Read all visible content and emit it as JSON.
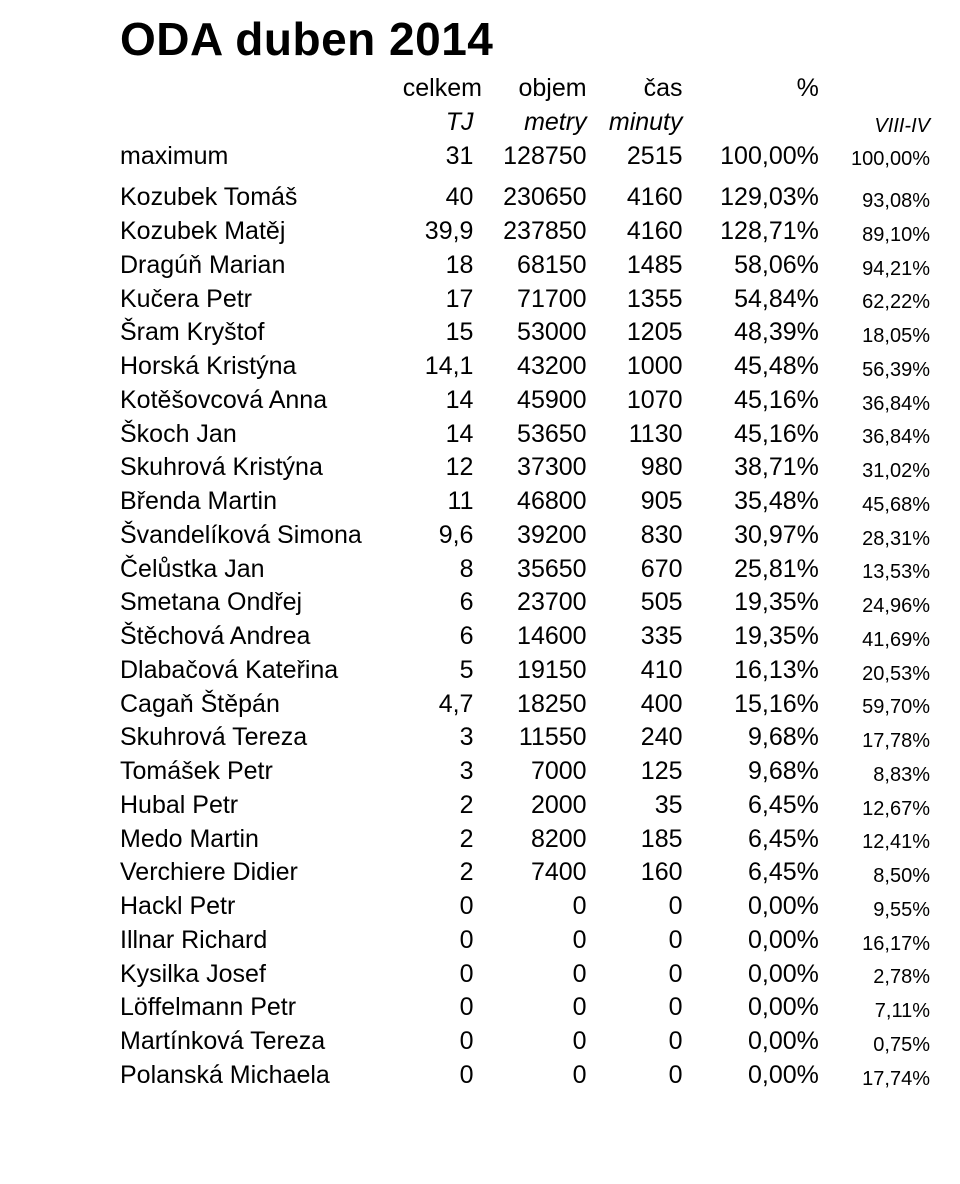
{
  "title": "ODA duben 2014",
  "header1": {
    "celkem": "celkem",
    "objem": "objem",
    "cas": "čas",
    "pct": "%"
  },
  "header2": {
    "tj": "TJ",
    "metry": "metry",
    "minuty": "minuty",
    "viii": "VIII-IV"
  },
  "maximum": {
    "label": "maximum",
    "tj": "31",
    "metry": "128750",
    "minuty": "2515",
    "pct": "100,00%",
    "viii": "100,00%"
  },
  "rows": [
    {
      "name": "Kozubek Tomáš",
      "tj": "40",
      "metry": "230650",
      "minuty": "4160",
      "pct": "129,03%",
      "viii": "93,08%"
    },
    {
      "name": "Kozubek Matěj",
      "tj": "39,9",
      "metry": "237850",
      "minuty": "4160",
      "pct": "128,71%",
      "viii": "89,10%"
    },
    {
      "name": "Dragúň Marian",
      "tj": "18",
      "metry": "68150",
      "minuty": "1485",
      "pct": "58,06%",
      "viii": "94,21%"
    },
    {
      "name": "Kučera Petr",
      "tj": "17",
      "metry": "71700",
      "minuty": "1355",
      "pct": "54,84%",
      "viii": "62,22%"
    },
    {
      "name": "Šram Kryštof",
      "tj": "15",
      "metry": "53000",
      "minuty": "1205",
      "pct": "48,39%",
      "viii": "18,05%"
    },
    {
      "name": "Horská Kristýna",
      "tj": "14,1",
      "metry": "43200",
      "minuty": "1000",
      "pct": "45,48%",
      "viii": "56,39%"
    },
    {
      "name": "Kotěšovcová Anna",
      "tj": "14",
      "metry": "45900",
      "minuty": "1070",
      "pct": "45,16%",
      "viii": "36,84%"
    },
    {
      "name": "Škoch Jan",
      "tj": "14",
      "metry": "53650",
      "minuty": "1130",
      "pct": "45,16%",
      "viii": "36,84%"
    },
    {
      "name": "Skuhrová Kristýna",
      "tj": "12",
      "metry": "37300",
      "minuty": "980",
      "pct": "38,71%",
      "viii": "31,02%"
    },
    {
      "name": "Břenda Martin",
      "tj": "11",
      "metry": "46800",
      "minuty": "905",
      "pct": "35,48%",
      "viii": "45,68%"
    },
    {
      "name": "Švandelíková Simona",
      "tj": "9,6",
      "metry": "39200",
      "minuty": "830",
      "pct": "30,97%",
      "viii": "28,31%"
    },
    {
      "name": "Čelůstka Jan",
      "tj": "8",
      "metry": "35650",
      "minuty": "670",
      "pct": "25,81%",
      "viii": "13,53%"
    },
    {
      "name": "Smetana Ondřej",
      "tj": "6",
      "metry": "23700",
      "minuty": "505",
      "pct": "19,35%",
      "viii": "24,96%"
    },
    {
      "name": "Štěchová Andrea",
      "tj": "6",
      "metry": "14600",
      "minuty": "335",
      "pct": "19,35%",
      "viii": "41,69%"
    },
    {
      "name": "Dlabačová Kateřina",
      "tj": "5",
      "metry": "19150",
      "minuty": "410",
      "pct": "16,13%",
      "viii": "20,53%"
    },
    {
      "name": "Cagaň Štěpán",
      "tj": "4,7",
      "metry": "18250",
      "minuty": "400",
      "pct": "15,16%",
      "viii": "59,70%"
    },
    {
      "name": "Skuhrová Tereza",
      "tj": "3",
      "metry": "11550",
      "minuty": "240",
      "pct": "9,68%",
      "viii": "17,78%"
    },
    {
      "name": "Tomášek Petr",
      "tj": "3",
      "metry": "7000",
      "minuty": "125",
      "pct": "9,68%",
      "viii": "8,83%"
    },
    {
      "name": "Hubal Petr",
      "tj": "2",
      "metry": "2000",
      "minuty": "35",
      "pct": "6,45%",
      "viii": "12,67%"
    },
    {
      "name": "Medo Martin",
      "tj": "2",
      "metry": "8200",
      "minuty": "185",
      "pct": "6,45%",
      "viii": "12,41%"
    },
    {
      "name": "Verchiere Didier",
      "tj": "2",
      "metry": "7400",
      "minuty": "160",
      "pct": "6,45%",
      "viii": "8,50%"
    },
    {
      "name": "Hackl Petr",
      "tj": "0",
      "metry": "0",
      "minuty": "0",
      "pct": "0,00%",
      "viii": "9,55%"
    },
    {
      "name": "Illnar Richard",
      "tj": "0",
      "metry": "0",
      "minuty": "0",
      "pct": "0,00%",
      "viii": "16,17%"
    },
    {
      "name": "Kysilka Josef",
      "tj": "0",
      "metry": "0",
      "minuty": "0",
      "pct": "0,00%",
      "viii": "2,78%"
    },
    {
      "name": "Löffelmann Petr",
      "tj": "0",
      "metry": "0",
      "minuty": "0",
      "pct": "0,00%",
      "viii": "7,11%"
    },
    {
      "name": "Martínková Tereza",
      "tj": "0",
      "metry": "0",
      "minuty": "0",
      "pct": "0,00%",
      "viii": "0,75%"
    },
    {
      "name": "Polanská Michaela",
      "tj": "0",
      "metry": "0",
      "minuty": "0",
      "pct": "0,00%",
      "viii": "17,74%"
    }
  ]
}
